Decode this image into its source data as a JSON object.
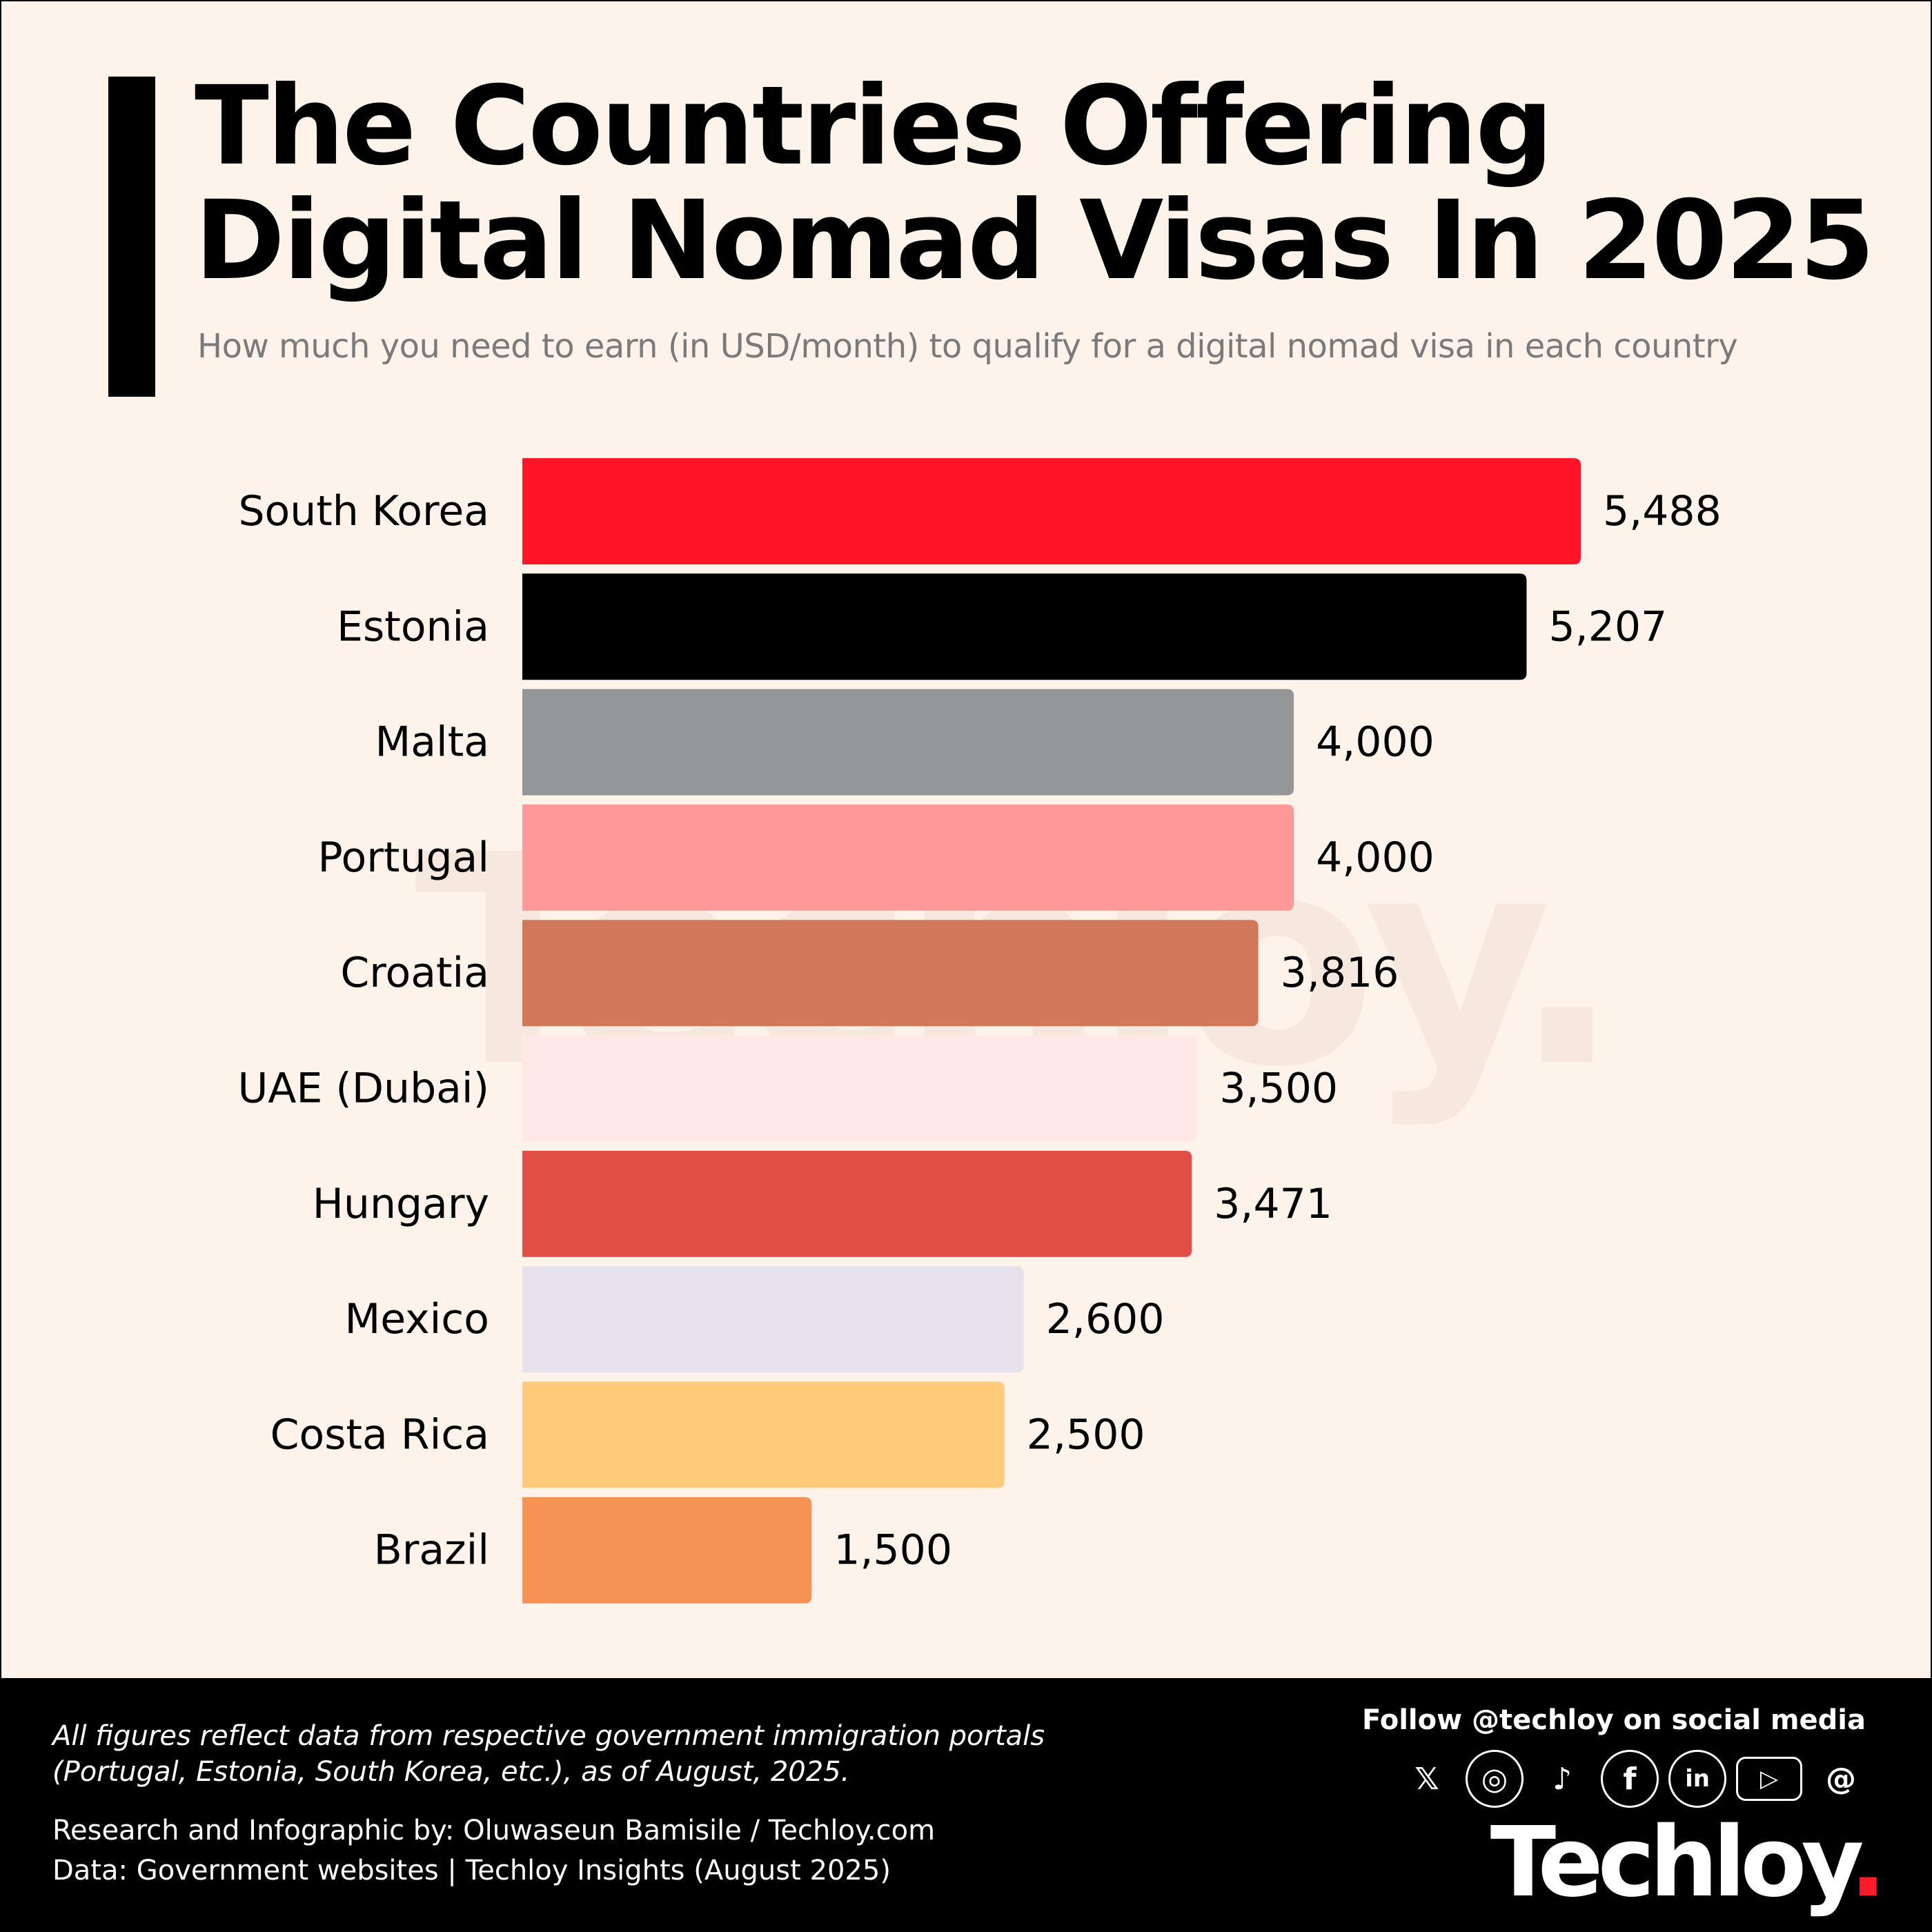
{
  "header": {
    "title_line1": "The Countries Offering",
    "title_line2": "Digital Nomad Visas In 2025",
    "subtitle": "How much you need to earn (in USD/month) to qualify for a digital nomad visa in each country"
  },
  "watermark": "Techloy.",
  "chart_data": {
    "type": "bar",
    "orientation": "horizontal",
    "title": "The Countries Offering Digital Nomad Visas In 2025",
    "subtitle": "How much you need to earn (in USD/month) to qualify for a digital nomad visa in each country",
    "categories": [
      "South Korea",
      "Estonia",
      "Malta",
      "Portugal",
      "Croatia",
      "UAE (Dubai)",
      "Hungary",
      "Mexico",
      "Costa Rica",
      "Brazil"
    ],
    "values": [
      5488,
      5207,
      4000,
      4000,
      3816,
      3500,
      3471,
      2600,
      2500,
      1500
    ],
    "value_labels": [
      "5,488",
      "5,207",
      "4,000",
      "4,000",
      "3,816",
      "3,500",
      "3,471",
      "2,600",
      "2,500",
      "1,500"
    ],
    "colors": [
      "#ff1428",
      "#000000",
      "#959697",
      "#ff9898",
      "#d2785a",
      "#ffe8e6",
      "#e04e45",
      "#e5e2ec",
      "#ffcb7a",
      "#f69253"
    ],
    "xlim": [
      0,
      5488
    ],
    "grid": false,
    "axes_visible": false
  },
  "footer": {
    "note_line1": "All figures reflect data from respective government immigration portals",
    "note_line2": "(Portugal, Estonia, South Korea, etc.), as of August, 2025.",
    "credit": "Research and Infographic by: Oluwaseun Bamisile / Techloy.com",
    "source": "Data: Government websites | Techloy Insights (August 2025)",
    "follow": "Follow @techloy on social media",
    "social_icons": [
      "x-icon",
      "instagram-icon",
      "tiktok-icon",
      "facebook-icon",
      "linkedin-icon",
      "youtube-icon",
      "threads-icon"
    ],
    "logo_text": "Techloy",
    "logo_dot_color": "#ff1a2a"
  }
}
